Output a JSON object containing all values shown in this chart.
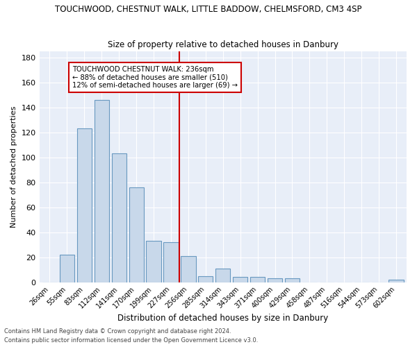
{
  "title1": "TOUCHWOOD, CHESTNUT WALK, LITTLE BADDOW, CHELMSFORD, CM3 4SP",
  "title2": "Size of property relative to detached houses in Danbury",
  "xlabel": "Distribution of detached houses by size in Danbury",
  "ylabel": "Number of detached properties",
  "categories": [
    "26sqm",
    "55sqm",
    "83sqm",
    "112sqm",
    "141sqm",
    "170sqm",
    "199sqm",
    "227sqm",
    "256sqm",
    "285sqm",
    "314sqm",
    "343sqm",
    "371sqm",
    "400sqm",
    "429sqm",
    "458sqm",
    "487sqm",
    "516sqm",
    "544sqm",
    "573sqm",
    "602sqm"
  ],
  "values": [
    0,
    22,
    123,
    146,
    103,
    76,
    33,
    32,
    21,
    5,
    11,
    4,
    4,
    3,
    3,
    0,
    0,
    0,
    0,
    0,
    2
  ],
  "bar_color": "#c8d8ea",
  "bar_edge_color": "#6898c0",
  "vline_color": "#cc0000",
  "annotation_text": "TOUCHWOOD CHESTNUT WALK: 236sqm\n← 88% of detached houses are smaller (510)\n12% of semi-detached houses are larger (69) →",
  "annotation_box_color": "#ffffff",
  "annotation_box_edge": "#cc0000",
  "ylim": [
    0,
    185
  ],
  "yticks": [
    0,
    20,
    40,
    60,
    80,
    100,
    120,
    140,
    160,
    180
  ],
  "background_color": "#e8eef8",
  "footer1": "Contains HM Land Registry data © Crown copyright and database right 2024.",
  "footer2": "Contains public sector information licensed under the Open Government Licence v3.0."
}
